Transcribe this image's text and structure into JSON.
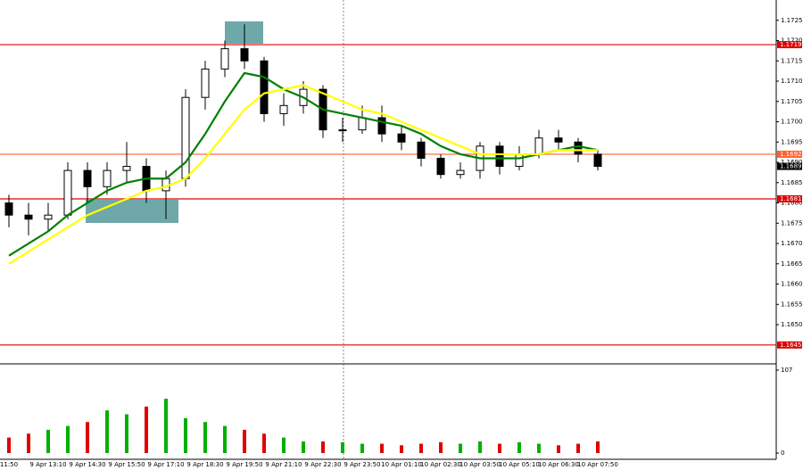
{
  "chart_data": {
    "type": "candlestick",
    "categories": [
      "11:50",
      null,
      "9 Apr 13:10",
      null,
      "9 Apr 14:30",
      null,
      "9 Apr 15:50",
      null,
      "9 Apr 17:10",
      null,
      "9 Apr 18:30",
      null,
      "9 Apr 19:50",
      null,
      "9 Apr 21:10",
      null,
      "9 Apr 22:30",
      null,
      "9 Apr 23:50",
      null,
      "10 Apr 01:10",
      null,
      "10 Apr 02:30",
      null,
      "10 Apr 03:50",
      null,
      "10 Apr 05:10",
      null,
      "10 Apr 06:30",
      null,
      "10 Apr 07:50"
    ],
    "open": [
      1.168,
      1.1677,
      1.1676,
      1.1677,
      1.1688,
      1.1684,
      1.1688,
      1.1689,
      1.1683,
      1.1686,
      1.1706,
      1.1713,
      1.1718,
      1.1715,
      1.1702,
      1.1704,
      1.1708,
      1.1698,
      1.1698,
      1.1701,
      1.1697,
      1.1695,
      1.1691,
      1.1687,
      1.1688,
      1.1694,
      1.1689,
      1.1692,
      1.1696,
      1.1695,
      1.1692
    ],
    "high": [
      1.1682,
      1.168,
      1.168,
      1.169,
      1.169,
      1.169,
      1.1695,
      1.1691,
      1.1688,
      1.1708,
      1.1715,
      1.172,
      1.1724,
      1.1716,
      1.1707,
      1.171,
      1.1709,
      1.1701,
      1.1704,
      1.1704,
      1.1699,
      1.1696,
      1.1692,
      1.169,
      1.1695,
      1.1695,
      1.1694,
      1.1698,
      1.1698,
      1.1696,
      1.1693
    ],
    "low": [
      1.1674,
      1.1672,
      1.1673,
      1.1676,
      1.168,
      1.1682,
      1.1685,
      1.168,
      1.1676,
      1.1684,
      1.1703,
      1.1711,
      1.1713,
      1.17,
      1.1699,
      1.1702,
      1.1696,
      1.1695,
      1.1697,
      1.1695,
      1.1693,
      1.1689,
      1.1686,
      1.1686,
      1.1686,
      1.1687,
      1.1688,
      1.1691,
      1.1693,
      1.169,
      1.1688
    ],
    "close": [
      1.1677,
      1.1676,
      1.1677,
      1.1688,
      1.1684,
      1.1688,
      1.1689,
      1.1683,
      1.1686,
      1.1706,
      1.1713,
      1.1718,
      1.1715,
      1.1702,
      1.1704,
      1.1708,
      1.1698,
      1.1698,
      1.1701,
      1.1697,
      1.1695,
      1.1691,
      1.1687,
      1.1688,
      1.1694,
      1.1689,
      1.1692,
      1.1696,
      1.1695,
      1.1692,
      1.1689
    ],
    "candle_color": "#000000",
    "series": [
      {
        "color": "#008000",
        "values": [
          1.1667,
          1.167,
          1.1673,
          1.1677,
          1.168,
          1.1683,
          1.1685,
          1.1686,
          1.1686,
          1.169,
          1.1697,
          1.1705,
          1.1712,
          1.1711,
          1.1708,
          1.1706,
          1.1703,
          1.1702,
          1.1701,
          1.17,
          1.1699,
          1.1697,
          1.1694,
          1.1692,
          1.1691,
          1.1691,
          1.1691,
          1.1692,
          1.1693,
          1.1694,
          1.1693
        ]
      },
      {
        "color": "#ffff00",
        "values": [
          1.1665,
          1.1668,
          1.1671,
          1.1674,
          1.1677,
          1.1679,
          1.1681,
          1.1683,
          1.1684,
          1.1686,
          1.1691,
          1.1697,
          1.1703,
          1.1707,
          1.1708,
          1.1709,
          1.1707,
          1.1705,
          1.1703,
          1.1702,
          1.17,
          1.1698,
          1.1696,
          1.1694,
          1.1692,
          1.1692,
          1.1692,
          1.1692,
          1.1693,
          1.1693,
          1.1693
        ]
      }
    ],
    "ylim": [
      1.1641,
      1.173
    ],
    "yticks": [
      {
        "value": 1.165,
        "label": "1.1650"
      },
      {
        "value": 1.1655,
        "label": "1.1655"
      },
      {
        "value": 1.166,
        "label": "1.1660"
      },
      {
        "value": 1.1665,
        "label": "1.1665"
      },
      {
        "value": 1.167,
        "label": "1.1670"
      },
      {
        "value": 1.1675,
        "label": "1.1675"
      },
      {
        "value": 1.168,
        "label": "1.1680"
      },
      {
        "value": 1.1685,
        "label": "1.1685"
      },
      {
        "value": 1.169,
        "label": "1.1690"
      },
      {
        "value": 1.1695,
        "label": "1.1695"
      },
      {
        "value": 1.17,
        "label": "1.1700"
      },
      {
        "value": 1.1705,
        "label": "1.1705"
      },
      {
        "value": 1.171,
        "label": "1.1710"
      },
      {
        "value": 1.1715,
        "label": "1.1715"
      },
      {
        "value": 1.172,
        "label": "1.1720"
      },
      {
        "value": 1.1725,
        "label": "1.1725"
      }
    ],
    "levels": [
      {
        "value": 1.1719,
        "label": "1.1719",
        "color": "#e00000"
      },
      {
        "value": 1.1692,
        "label": "1.1692",
        "color": "#ff6030"
      },
      {
        "value": 1.1681,
        "label": "1.1681",
        "color": "#e00000"
      },
      {
        "value": 1.1645,
        "label": "1.1645",
        "color": "#e00000"
      }
    ],
    "current_price": {
      "value": 1.1689,
      "label": "1.1689"
    },
    "volume": {
      "values": [
        20,
        25,
        30,
        35,
        40,
        55,
        50,
        60,
        70,
        45,
        40,
        35,
        30,
        25,
        20,
        15,
        15,
        14,
        12,
        12,
        10,
        12,
        14,
        12,
        15,
        12,
        14,
        12,
        10,
        12,
        15
      ],
      "ylim": [
        0,
        107
      ],
      "yticks": [
        0,
        107
      ],
      "up_color": "#00b000",
      "down_color": "#e00000"
    }
  }
}
